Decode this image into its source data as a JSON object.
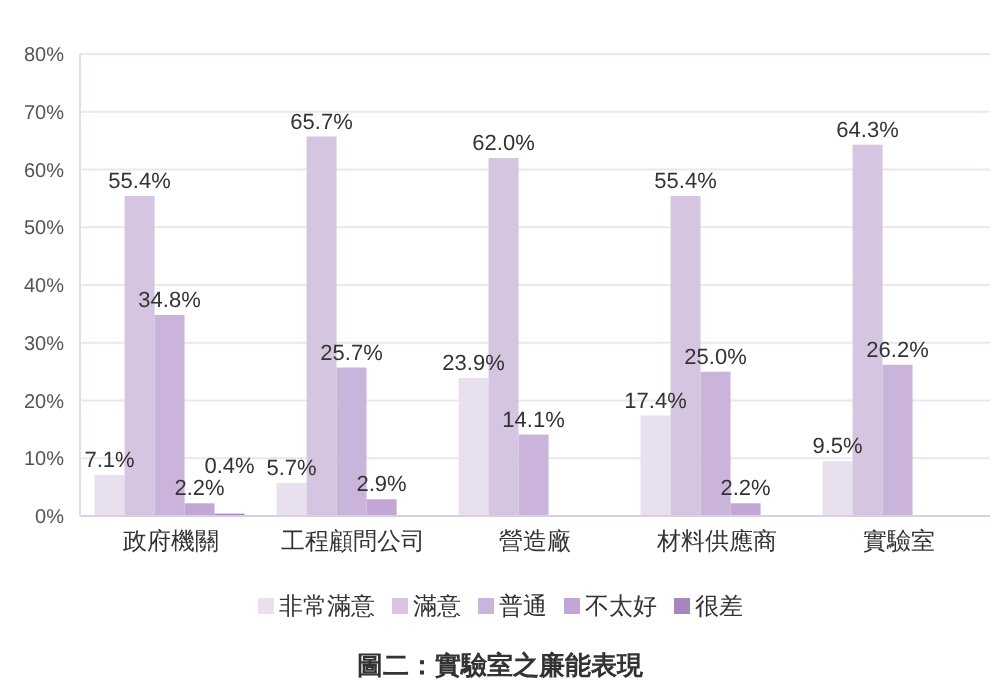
{
  "chart_data": {
    "type": "bar",
    "title": "圖二：實驗室之廉能表現",
    "categories": [
      "政府機關",
      "工程顧問公司",
      "營造廠",
      "材料供應商",
      "實驗室"
    ],
    "series": [
      {
        "name": "非常滿意",
        "color": "#e8e0ee",
        "values": [
          7.1,
          5.7,
          23.9,
          17.4,
          9.5
        ],
        "value_labels": [
          "7.1%",
          "5.7%",
          "23.9%",
          "17.4%",
          "9.5%"
        ]
      },
      {
        "name": "滿意",
        "color": "#d6c5e1",
        "values": [
          55.4,
          65.7,
          62.0,
          55.4,
          64.3
        ],
        "value_labels": [
          "55.4%",
          "65.7%",
          "62.0%",
          "55.4%",
          "64.3%"
        ]
      },
      {
        "name": "普通",
        "color": "#cbb4db",
        "values": [
          34.8,
          25.7,
          14.1,
          25.0,
          26.2
        ],
        "value_labels": [
          "34.8%",
          "25.7%",
          "14.1%",
          "25.0%",
          "26.2%"
        ]
      },
      {
        "name": "不太好",
        "color": "#c2a6d5",
        "values": [
          2.2,
          2.9,
          0,
          2.2,
          0
        ],
        "value_labels": [
          "2.2%",
          "2.9%",
          null,
          "2.2%",
          null
        ]
      },
      {
        "name": "很差",
        "color": "#a985bd",
        "values": [
          0.4,
          0,
          0,
          0,
          0
        ],
        "value_labels": [
          "0.4%",
          null,
          null,
          null,
          null
        ]
      }
    ],
    "ylim": [
      0,
      80
    ],
    "yticks": [
      {
        "value": 0,
        "label": "0%"
      },
      {
        "value": 10,
        "label": "10%"
      },
      {
        "value": 20,
        "label": "20%"
      },
      {
        "value": 30,
        "label": "30%"
      },
      {
        "value": 40,
        "label": "40%"
      },
      {
        "value": 50,
        "label": "50%"
      },
      {
        "value": 60,
        "label": "60%"
      },
      {
        "value": 70,
        "label": "70%"
      },
      {
        "value": 80,
        "label": "80%"
      }
    ],
    "grid": "y",
    "legend": "bottom"
  }
}
